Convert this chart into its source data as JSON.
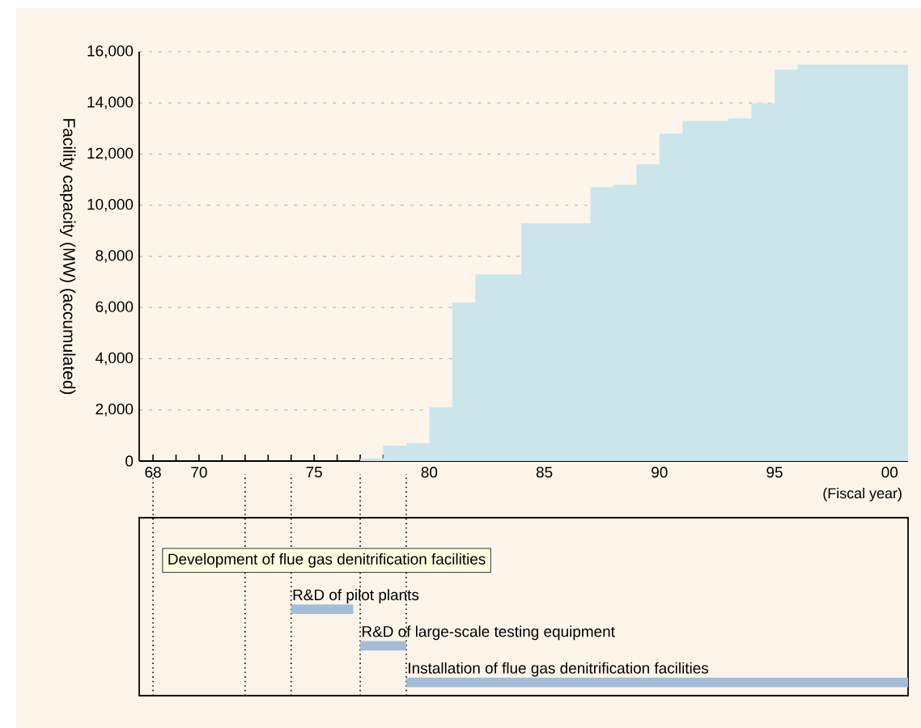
{
  "chart_data": [
    {
      "type": "area",
      "ylabel": "Facility capacity (MW) (accumulated)",
      "xlabel": "(Fiscal year)",
      "color": "#cce5ea",
      "grid": "y",
      "x": [
        1977,
        1978,
        1978,
        1979,
        1979,
        1980,
        1980,
        1981,
        1981,
        1982,
        1982,
        1984,
        1984,
        1987,
        1987,
        1988,
        1988,
        1989,
        1989,
        1990,
        1990,
        1991,
        1991,
        1993,
        1993,
        1994,
        1994,
        1995,
        1995,
        1996,
        1996,
        2000.8
      ],
      "values": [
        100,
        100,
        600,
        600,
        700,
        700,
        2100,
        2100,
        6200,
        6200,
        7300,
        7300,
        9300,
        9300,
        10700,
        10700,
        10800,
        10800,
        11600,
        11600,
        12800,
        12800,
        13300,
        13300,
        13400,
        13400,
        14000,
        14000,
        15300,
        15300,
        15500,
        15500
      ],
      "xlim": [
        1967.4,
        2000.8
      ],
      "ylim": [
        0,
        16000
      ],
      "xticks": [
        {
          "value": 1968,
          "label": "68"
        },
        {
          "value": 1969,
          "label": null
        },
        {
          "value": 1970,
          "label": "70"
        },
        {
          "value": 1971,
          "label": null
        },
        {
          "value": 1972,
          "label": null
        },
        {
          "value": 1973,
          "label": null
        },
        {
          "value": 1974,
          "label": null
        },
        {
          "value": 1975,
          "label": "75"
        },
        {
          "value": 1976,
          "label": null
        },
        {
          "value": 1977,
          "label": null
        },
        {
          "value": 1978,
          "label": null
        },
        {
          "value": 1979,
          "label": null
        },
        {
          "value": 1980,
          "label": "80"
        },
        {
          "value": 1981,
          "label": null
        },
        {
          "value": 1982,
          "label": null
        },
        {
          "value": 1983,
          "label": null
        },
        {
          "value": 1984,
          "label": null
        },
        {
          "value": 1985,
          "label": "85"
        },
        {
          "value": 1986,
          "label": null
        },
        {
          "value": 1987,
          "label": null
        },
        {
          "value": 1988,
          "label": null
        },
        {
          "value": 1989,
          "label": null
        },
        {
          "value": 1990,
          "label": "90"
        },
        {
          "value": 1991,
          "label": null
        },
        {
          "value": 1992,
          "label": null
        },
        {
          "value": 1993,
          "label": null
        },
        {
          "value": 1994,
          "label": null
        },
        {
          "value": 1995,
          "label": "95"
        },
        {
          "value": 1996,
          "label": null
        },
        {
          "value": 1997,
          "label": null
        },
        {
          "value": 1998,
          "label": null
        },
        {
          "value": 1999,
          "label": null
        },
        {
          "value": 2000,
          "label": "00"
        }
      ],
      "yticks": [
        0,
        {
          "value": 2000,
          "label": "2,000"
        },
        {
          "value": 4000,
          "label": "4,000"
        },
        {
          "value": 6000,
          "label": "6,000"
        },
        {
          "value": 8000,
          "label": "8,000"
        },
        {
          "value": 10000,
          "label": "10,000"
        },
        {
          "value": 12000,
          "label": "12,000"
        },
        {
          "value": 14000,
          "label": "14,000"
        },
        {
          "value": 16000,
          "label": "16,000"
        }
      ]
    },
    {
      "type": "bar",
      "orientation": "horizontal",
      "title": "Development of flue gas denitrification facilities",
      "categories": [
        "R&D of pilot plants",
        "R&D of large-scale testing equipment",
        "Installation of flue gas denitrification facilities"
      ],
      "base": [
        1974,
        1977,
        1979
      ],
      "values": [
        2.7,
        2,
        21.8
      ],
      "color": "#a3bdd8",
      "xlim": [
        1967.4,
        2000.8
      ],
      "tick_labels": false,
      "ref_lines": [
        {
          "axis": "x",
          "value": 1968,
          "line_style": "dotted"
        },
        {
          "axis": "x",
          "value": 1972,
          "line_style": "dotted"
        },
        {
          "axis": "x",
          "value": 1974,
          "line_style": "dotted"
        },
        {
          "axis": "x",
          "value": 1977,
          "line_style": "dotted"
        },
        {
          "axis": "x",
          "value": 1979,
          "line_style": "dotted"
        }
      ]
    }
  ]
}
